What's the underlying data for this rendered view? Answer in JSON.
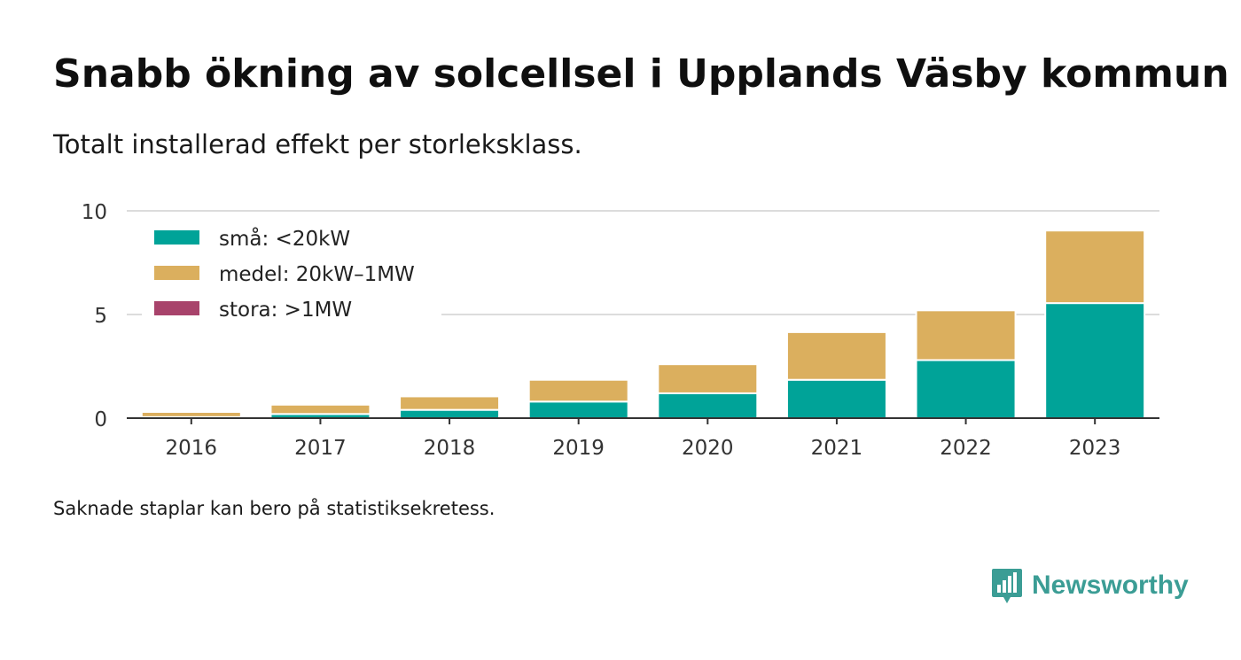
{
  "title": "Snabb ökning av solcellsel i Upplands Väsby kommun",
  "subtitle": "Totalt installerad effekt per storleksklass.",
  "footnote": "Saknade staplar kan bero på statistiksekretess.",
  "brand": {
    "name": "Newsworthy",
    "icon": "bar-chart-speech-bubble-icon",
    "color": "#3b9d95"
  },
  "chart_data": {
    "type": "bar",
    "stacked": true,
    "categories": [
      "2016",
      "2017",
      "2018",
      "2019",
      "2020",
      "2021",
      "2022",
      "2023"
    ],
    "series": [
      {
        "name": "små: <20kW",
        "color": "#00a398",
        "values": [
          0.05,
          0.2,
          0.4,
          0.8,
          1.2,
          1.85,
          2.8,
          5.55
        ]
      },
      {
        "name": "medel: 20kW–1MW",
        "color": "#dbaf5e",
        "values": [
          0.25,
          0.45,
          0.65,
          1.05,
          1.4,
          2.3,
          2.4,
          3.5
        ]
      },
      {
        "name": "stora: >1MW",
        "color": "#a8436b",
        "values": [
          0,
          0,
          0,
          0,
          0,
          0,
          0,
          0
        ]
      }
    ],
    "y_ticks": [
      "0",
      "5",
      "10"
    ],
    "ylim": [
      0,
      10
    ],
    "grid": true,
    "legend_position": "top-left",
    "xlabel": "",
    "ylabel": ""
  }
}
